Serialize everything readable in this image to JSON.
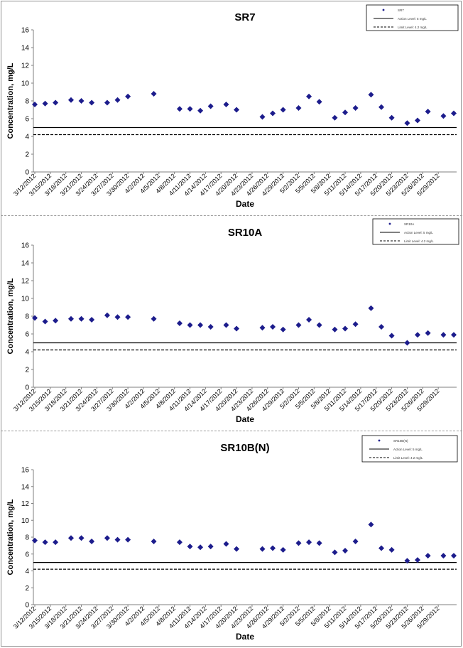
{
  "colors": {
    "marker": "#1c1c8c",
    "axis": "#7f7f7f",
    "line": "#000000",
    "text": "#000000"
  },
  "shared": {
    "xlabel": "Date",
    "ylabel": "Concentration, mg/L",
    "dates": [
      "3/12/2012",
      "3/15/2012",
      "3/18/2012",
      "3/21/2012",
      "3/24/2012",
      "3/27/2012",
      "3/30/2012",
      "4/2/2012",
      "4/5/2012",
      "4/8/2012",
      "4/11/2012",
      "4/14/2012",
      "4/17/2012",
      "4/20/2012",
      "4/23/2012",
      "4/26/2012",
      "4/29/2012",
      "5/2/2012",
      "5/5/2012",
      "5/8/2012",
      "5/11/2012",
      "5/14/2012",
      "5/17/2012",
      "5/20/2012",
      "5/23/2012",
      "5/26/2012",
      "5/29/2012"
    ],
    "yticks": [
      "0",
      "2",
      "4",
      "6",
      "8",
      "10",
      "12",
      "14",
      "16"
    ]
  },
  "chart_data": [
    {
      "type": "scatter",
      "title": "SR7",
      "ylim": [
        0,
        16
      ],
      "xrange": [
        "3/12/2012",
        "6/1/2012"
      ],
      "legend_position": "top-right",
      "legend": [
        "SR7",
        "Action Level: 5 mg/L",
        "Limit Level: 4.2 mg/L"
      ],
      "reference_lines": [
        {
          "name": "Action Level: 5 mg/L",
          "value": 5,
          "style": "solid"
        },
        {
          "name": "Limit Level: 4.2 mg/L",
          "value": 4.2,
          "style": "dashed"
        }
      ],
      "series": [
        {
          "name": "SR7",
          "x": [
            "3/12/2012",
            "3/14/2012",
            "3/16/2012",
            "3/19/2012",
            "3/21/2012",
            "3/23/2012",
            "3/26/2012",
            "3/28/2012",
            "3/30/2012",
            "4/4/2012",
            "4/9/2012",
            "4/11/2012",
            "4/13/2012",
            "4/15/2012",
            "4/18/2012",
            "4/20/2012",
            "4/25/2012",
            "4/27/2012",
            "4/29/2012",
            "5/2/2012",
            "5/4/2012",
            "5/6/2012",
            "5/9/2012",
            "5/11/2012",
            "5/13/2012",
            "5/16/2012",
            "5/18/2012",
            "5/20/2012",
            "5/23/2012",
            "5/25/2012",
            "5/27/2012",
            "5/30/2012",
            "6/1/2012"
          ],
          "y": [
            7.6,
            7.7,
            7.8,
            8.1,
            8.0,
            7.8,
            7.8,
            8.1,
            8.5,
            8.8,
            7.1,
            7.1,
            6.9,
            7.4,
            7.6,
            7.0,
            6.2,
            6.6,
            7.0,
            7.2,
            8.5,
            7.9,
            6.1,
            6.7,
            7.2,
            8.7,
            7.3,
            6.1,
            5.5,
            5.8,
            6.8,
            6.3,
            6.6
          ]
        }
      ]
    },
    {
      "type": "scatter",
      "title": "SR10A",
      "ylim": [
        0,
        16
      ],
      "xrange": [
        "3/12/2012",
        "6/1/2012"
      ],
      "legend_position": "top-right",
      "legend": [
        "SR10A",
        "Action Level: 5 mg/L",
        "Limit Level: 4.2 mg/L"
      ],
      "reference_lines": [
        {
          "name": "Action Level: 5 mg/L",
          "value": 5,
          "style": "solid"
        },
        {
          "name": "Limit Level: 4.2 mg/L",
          "value": 4.2,
          "style": "dashed"
        }
      ],
      "series": [
        {
          "name": "SR10A",
          "x": [
            "3/12/2012",
            "3/14/2012",
            "3/16/2012",
            "3/19/2012",
            "3/21/2012",
            "3/23/2012",
            "3/26/2012",
            "3/28/2012",
            "3/30/2012",
            "4/4/2012",
            "4/9/2012",
            "4/11/2012",
            "4/13/2012",
            "4/15/2012",
            "4/18/2012",
            "4/20/2012",
            "4/25/2012",
            "4/27/2012",
            "4/29/2012",
            "5/2/2012",
            "5/4/2012",
            "5/6/2012",
            "5/9/2012",
            "5/11/2012",
            "5/13/2012",
            "5/16/2012",
            "5/18/2012",
            "5/20/2012",
            "5/23/2012",
            "5/25/2012",
            "5/27/2012",
            "5/30/2012",
            "6/1/2012"
          ],
          "y": [
            7.8,
            7.4,
            7.5,
            7.7,
            7.7,
            7.6,
            8.1,
            7.9,
            7.9,
            7.7,
            7.2,
            7.0,
            7.0,
            6.8,
            7.0,
            6.6,
            6.7,
            6.8,
            6.5,
            7.0,
            7.6,
            7.0,
            6.5,
            6.6,
            7.1,
            8.9,
            6.8,
            5.8,
            5.0,
            5.9,
            6.1,
            5.9,
            5.9
          ]
        }
      ]
    },
    {
      "type": "scatter",
      "title": "SR10B(N)",
      "ylim": [
        0,
        16
      ],
      "xrange": [
        "3/12/2012",
        "6/1/2012"
      ],
      "legend_position": "top-right",
      "legend": [
        "SR10B(N)",
        "Action Level: 5 mg/L",
        "Limit Level: 4.2 mg/L"
      ],
      "reference_lines": [
        {
          "name": "Action Level: 5 mg/L",
          "value": 5,
          "style": "solid"
        },
        {
          "name": "Limit Level: 4.2 mg/L",
          "value": 4.2,
          "style": "dashed"
        }
      ],
      "series": [
        {
          "name": "SR10B(N)",
          "x": [
            "3/12/2012",
            "3/14/2012",
            "3/16/2012",
            "3/19/2012",
            "3/21/2012",
            "3/23/2012",
            "3/26/2012",
            "3/28/2012",
            "3/30/2012",
            "4/4/2012",
            "4/9/2012",
            "4/11/2012",
            "4/13/2012",
            "4/15/2012",
            "4/18/2012",
            "4/20/2012",
            "4/25/2012",
            "4/27/2012",
            "4/29/2012",
            "5/2/2012",
            "5/4/2012",
            "5/6/2012",
            "5/9/2012",
            "5/11/2012",
            "5/13/2012",
            "5/16/2012",
            "5/18/2012",
            "5/20/2012",
            "5/23/2012",
            "5/25/2012",
            "5/27/2012",
            "5/30/2012",
            "6/1/2012"
          ],
          "y": [
            7.6,
            7.4,
            7.4,
            7.9,
            7.9,
            7.5,
            7.9,
            7.7,
            7.7,
            7.5,
            7.4,
            6.9,
            6.8,
            6.9,
            7.2,
            6.6,
            6.6,
            6.7,
            6.5,
            7.3,
            7.4,
            7.3,
            6.2,
            6.4,
            7.5,
            9.5,
            6.7,
            6.5,
            5.2,
            5.3,
            5.8,
            5.8,
            5.8
          ]
        }
      ]
    }
  ]
}
